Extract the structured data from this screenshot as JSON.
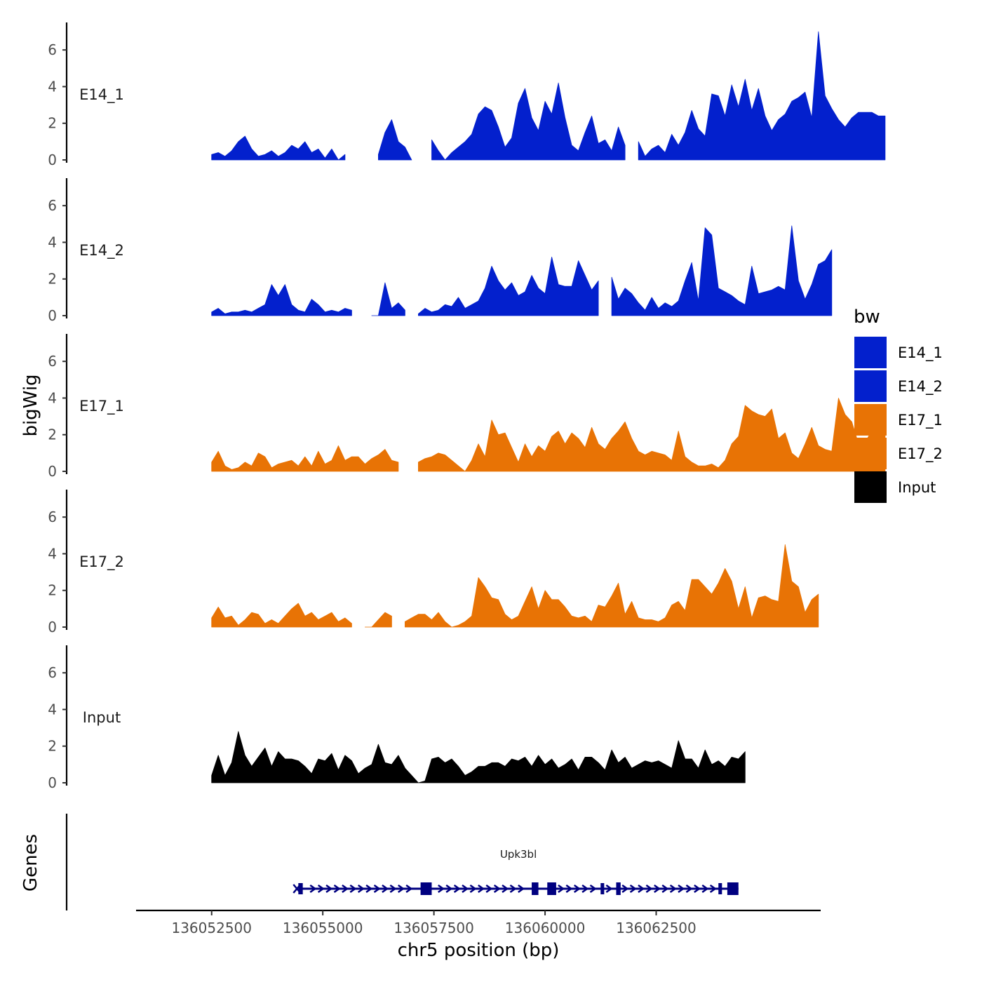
{
  "chart_data": {
    "type": "area",
    "ylabel": "bigWig",
    "genes_label": "Genes",
    "xlabel": "chr5 position (bp)",
    "xlim": [
      136050800,
      136066200
    ],
    "x_ticks": [
      {
        "value": 136052500,
        "label": "136052500"
      },
      {
        "value": 136055000,
        "label": "136055000"
      },
      {
        "value": 136057500,
        "label": "136057500"
      },
      {
        "value": 136060000,
        "label": "136060000"
      },
      {
        "value": 136062500,
        "label": "136062500"
      }
    ],
    "ylim": [
      0,
      7.5
    ],
    "y_ticks": [
      {
        "value": 0,
        "label": "0"
      },
      {
        "value": 2,
        "label": "2"
      },
      {
        "value": 4,
        "label": "4"
      },
      {
        "value": 6,
        "label": "6"
      }
    ],
    "legend": {
      "title": "bw",
      "items": [
        {
          "label": "E14_1",
          "color": "#0320CD"
        },
        {
          "label": "E14_2",
          "color": "#0320CD"
        },
        {
          "label": "E17_1",
          "color": "#E87305"
        },
        {
          "label": "E17_2",
          "color": "#E87305"
        },
        {
          "label": "Input",
          "color": "#000000"
        }
      ]
    },
    "series": [
      {
        "name": "E14_1",
        "color": "#0320CD",
        "start": 136052500,
        "step": 150,
        "values": [
          0.3,
          0.4,
          0.2,
          0.5,
          1.0,
          1.3,
          0.6,
          0.2,
          0.3,
          0.5,
          0.2,
          0.4,
          0.8,
          0.6,
          1.0,
          0.4,
          0.6,
          0.1,
          0.6,
          0.0,
          0.3,
          0.1,
          0.0,
          0.4,
          0.6,
          0.3,
          1.5,
          2.2,
          1.0,
          0.7,
          0.0,
          0.2,
          0.6,
          1.1,
          0.5,
          0.0,
          0.4,
          0.7,
          1.0,
          1.4,
          2.5,
          2.9,
          2.7,
          1.8,
          0.7,
          1.2,
          3.1,
          3.9,
          2.3,
          1.6,
          3.2,
          2.5,
          4.2,
          2.3,
          0.8,
          0.5,
          1.5,
          2.4,
          0.9,
          1.1,
          0.5,
          1.8,
          0.8,
          1.9,
          1.0,
          0.2,
          0.6,
          0.8,
          0.4,
          1.4,
          0.8,
          1.5,
          2.7,
          1.7,
          1.3,
          3.6,
          3.5,
          2.4,
          4.1,
          2.9,
          4.4,
          2.7,
          3.9,
          2.4,
          1.6,
          2.2,
          2.5,
          3.2,
          3.4,
          3.7,
          2.3,
          7.0,
          3.5,
          2.8,
          2.2,
          1.8,
          2.3,
          2.6,
          2.6,
          2.6,
          2.4,
          2.4
        ],
        "gaps": [
          [
            136055600,
            136056200
          ],
          [
            136057100,
            136057300
          ],
          [
            136061900,
            136062000
          ]
        ]
      },
      {
        "name": "E14_2",
        "color": "#0320CD",
        "start": 136052500,
        "step": 150,
        "values": [
          0.2,
          0.4,
          0.1,
          0.2,
          0.2,
          0.3,
          0.2,
          0.4,
          0.6,
          1.7,
          1.1,
          1.7,
          0.6,
          0.3,
          0.2,
          0.9,
          0.6,
          0.2,
          0.3,
          0.2,
          0.4,
          0.3,
          0.5,
          0.2,
          0.0,
          0.0,
          1.8,
          0.4,
          0.7,
          0.3,
          0.0,
          0.1,
          0.4,
          0.2,
          0.3,
          0.6,
          0.5,
          1.0,
          0.4,
          0.6,
          0.8,
          1.5,
          2.7,
          1.9,
          1.4,
          1.8,
          1.1,
          1.3,
          2.2,
          1.5,
          1.2,
          3.2,
          1.7,
          1.6,
          1.6,
          3.0,
          2.2,
          1.4,
          1.9,
          1.2,
          2.1,
          0.9,
          1.5,
          1.2,
          0.7,
          0.3,
          1.0,
          0.4,
          0.7,
          0.5,
          0.8,
          1.9,
          2.9,
          0.8,
          4.8,
          4.4,
          1.5,
          1.3,
          1.1,
          0.8,
          0.6,
          2.7,
          1.2,
          1.3,
          1.4,
          1.6,
          1.4,
          4.9,
          1.9,
          0.9,
          1.7,
          2.8,
          3.0,
          3.6
        ],
        "gaps": [
          [
            136055700,
            136056000
          ],
          [
            136056900,
            136057100
          ],
          [
            136061300,
            136061400
          ]
        ]
      },
      {
        "name": "E17_1",
        "color": "#E87305",
        "start": 136052500,
        "step": 150,
        "values": [
          0.5,
          1.1,
          0.3,
          0.1,
          0.2,
          0.5,
          0.3,
          1.0,
          0.8,
          0.2,
          0.4,
          0.5,
          0.6,
          0.3,
          0.8,
          0.3,
          1.1,
          0.4,
          0.6,
          1.4,
          0.6,
          0.8,
          0.8,
          0.4,
          0.7,
          0.9,
          1.2,
          0.6,
          0.5,
          0.3,
          0.6,
          0.5,
          0.7,
          0.8,
          1.0,
          0.9,
          0.6,
          0.3,
          0.0,
          0.6,
          1.5,
          0.8,
          2.8,
          2.0,
          2.1,
          1.3,
          0.5,
          1.5,
          0.8,
          1.4,
          1.1,
          1.9,
          2.2,
          1.5,
          2.1,
          1.8,
          1.3,
          2.4,
          1.5,
          1.2,
          1.8,
          2.2,
          2.7,
          1.8,
          1.1,
          0.9,
          1.1,
          1.0,
          0.9,
          0.6,
          2.2,
          0.8,
          0.5,
          0.3,
          0.3,
          0.4,
          0.2,
          0.6,
          1.5,
          1.9,
          3.6,
          3.3,
          3.1,
          3.0,
          3.4,
          1.8,
          2.1,
          1.0,
          0.7,
          1.5,
          2.4,
          1.4,
          1.2,
          1.1,
          4.0,
          3.1,
          2.7,
          1.5,
          1.6,
          2.2,
          2.4,
          2.6
        ],
        "gaps": [
          [
            136056850,
            136057000
          ]
        ]
      },
      {
        "name": "E17_2",
        "color": "#E87305",
        "start": 136052500,
        "step": 150,
        "values": [
          0.5,
          1.1,
          0.5,
          0.6,
          0.1,
          0.4,
          0.8,
          0.7,
          0.2,
          0.4,
          0.2,
          0.6,
          1.0,
          1.3,
          0.6,
          0.8,
          0.4,
          0.6,
          0.8,
          0.3,
          0.5,
          0.2,
          0.3,
          0.0,
          0.0,
          0.4,
          0.8,
          0.6,
          0.0,
          0.3,
          0.5,
          0.7,
          0.7,
          0.4,
          0.8,
          0.3,
          0.0,
          0.1,
          0.3,
          0.6,
          2.7,
          2.2,
          1.6,
          1.5,
          0.7,
          0.4,
          0.6,
          1.4,
          2.2,
          1.0,
          2.0,
          1.5,
          1.5,
          1.1,
          0.6,
          0.5,
          0.6,
          0.3,
          1.2,
          1.1,
          1.7,
          2.4,
          0.7,
          1.4,
          0.5,
          0.4,
          0.4,
          0.3,
          0.5,
          1.2,
          1.4,
          0.9,
          2.6,
          2.6,
          2.2,
          1.8,
          2.4,
          3.2,
          2.5,
          1.0,
          2.2,
          0.5,
          1.6,
          1.7,
          1.5,
          1.4,
          4.5,
          2.5,
          2.2,
          0.8,
          1.5,
          1.8
        ],
        "gaps": [
          [
            136055800,
            136055850
          ],
          [
            136056650,
            136056700
          ]
        ]
      },
      {
        "name": "Input",
        "color": "#000000",
        "start": 136052500,
        "step": 150,
        "values": [
          0.4,
          1.5,
          0.4,
          1.1,
          2.8,
          1.5,
          0.9,
          1.4,
          1.9,
          0.9,
          1.7,
          1.3,
          1.3,
          1.2,
          0.9,
          0.5,
          1.3,
          1.2,
          1.6,
          0.7,
          1.5,
          1.2,
          0.5,
          0.8,
          1.0,
          2.1,
          1.1,
          1.0,
          1.5,
          0.8,
          0.4,
          0.0,
          0.1,
          1.3,
          1.4,
          1.1,
          1.3,
          0.9,
          0.4,
          0.6,
          0.9,
          0.9,
          1.1,
          1.1,
          0.9,
          1.3,
          1.2,
          1.4,
          0.9,
          1.5,
          1.0,
          1.3,
          0.8,
          1.0,
          1.3,
          0.7,
          1.4,
          1.4,
          1.1,
          0.7,
          1.8,
          1.1,
          1.4,
          0.8,
          1.0,
          1.2,
          1.1,
          1.2,
          1.0,
          0.8,
          2.3,
          1.3,
          1.3,
          0.8,
          1.8,
          1.0,
          1.2,
          0.9,
          1.4,
          1.3,
          1.7
        ],
        "gaps": []
      }
    ],
    "gene": {
      "name": "Upk3bl",
      "strand": "+",
      "color": "#000080",
      "start": 136054450,
      "end": 136064350,
      "label_position": 136059400,
      "exons": [
        {
          "start": 136054450,
          "end": 136054550,
          "kind": "utr"
        },
        {
          "start": 136057200,
          "end": 136057450,
          "kind": "cds"
        },
        {
          "start": 136059700,
          "end": 136059850,
          "kind": "cds"
        },
        {
          "start": 136060050,
          "end": 136060250,
          "kind": "cds"
        },
        {
          "start": 136061250,
          "end": 136061330,
          "kind": "utr"
        },
        {
          "start": 136061600,
          "end": 136061700,
          "kind": "cds"
        },
        {
          "start": 136063900,
          "end": 136063980,
          "kind": "utr"
        },
        {
          "start": 136064100,
          "end": 136064350,
          "kind": "cds"
        }
      ]
    }
  }
}
